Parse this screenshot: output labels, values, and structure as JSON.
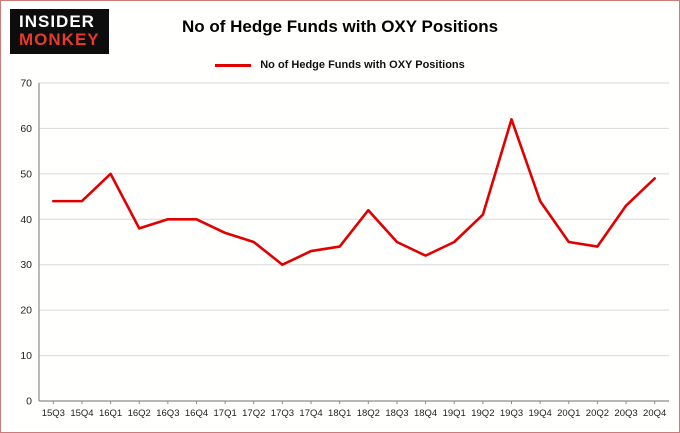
{
  "logo": {
    "line1": "INSIDER",
    "line2": "MONKEY"
  },
  "header": {
    "title": "No of Hedge Funds with OXY Positions"
  },
  "legend": {
    "label": "No of Hedge Funds with OXY Positions",
    "color": "#e10000"
  },
  "chart_data": {
    "type": "line",
    "title": "No of Hedge Funds with OXY Positions",
    "categories": [
      "15Q3",
      "15Q4",
      "16Q1",
      "16Q2",
      "16Q3",
      "16Q4",
      "17Q1",
      "17Q2",
      "17Q3",
      "17Q4",
      "18Q1",
      "18Q2",
      "18Q3",
      "18Q4",
      "19Q1",
      "19Q2",
      "19Q3",
      "19Q4",
      "20Q1",
      "20Q2",
      "20Q3",
      "20Q4"
    ],
    "values": [
      44,
      44,
      50,
      38,
      40,
      40,
      37,
      35,
      30,
      33,
      34,
      42,
      35,
      32,
      35,
      41,
      62,
      44,
      35,
      34,
      43,
      49
    ],
    "xlabel": "",
    "ylabel": "",
    "ylim": [
      0,
      70
    ],
    "yticks": [
      0,
      10,
      20,
      30,
      40,
      50,
      60,
      70
    ],
    "grid": true,
    "legend_position": "top",
    "line_color": "#e10000",
    "grid_color": "#d9d9d9",
    "axis_color": "#8c8c8c",
    "tick_label_color": "#222222"
  }
}
